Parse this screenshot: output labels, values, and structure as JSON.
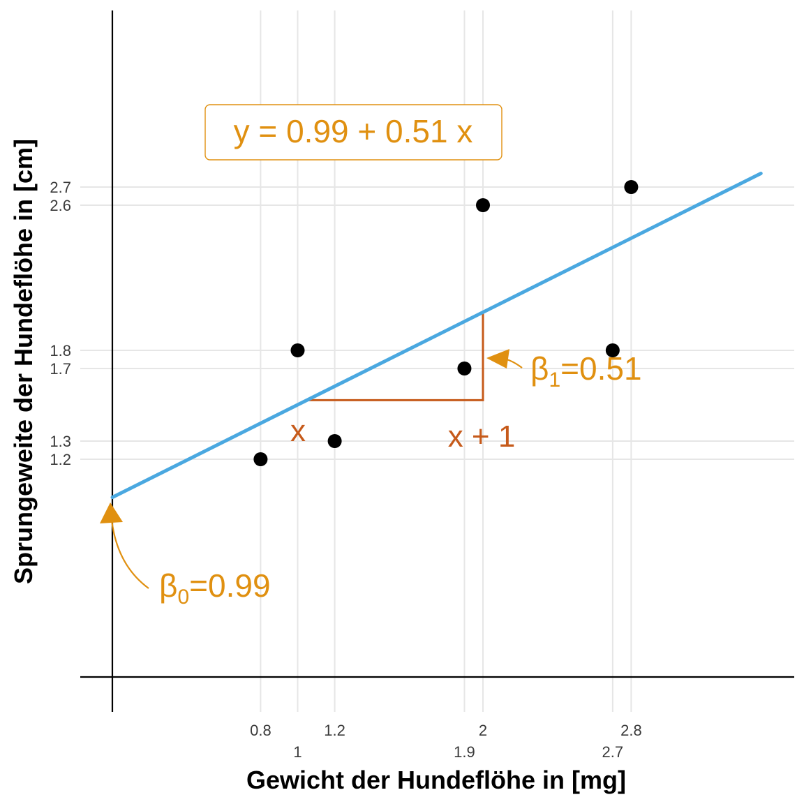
{
  "chart_data": {
    "type": "scatter",
    "xlabel": "Gewicht der Hundeflöhe in [mg]",
    "ylabel": "Sprungeweite der Hundeflöhe in [cm]",
    "xlim": [
      0,
      3.5
    ],
    "ylim": [
      0,
      3.6
    ],
    "grid": true,
    "points": [
      {
        "x": 0.8,
        "y": 1.2
      },
      {
        "x": 1.0,
        "y": 1.8
      },
      {
        "x": 1.2,
        "y": 1.3
      },
      {
        "x": 1.9,
        "y": 1.7
      },
      {
        "x": 2.0,
        "y": 2.6
      },
      {
        "x": 2.7,
        "y": 1.8
      },
      {
        "x": 2.8,
        "y": 2.7
      }
    ],
    "x_ticks_top": [
      "0.8",
      "1.2",
      "2",
      "2.8"
    ],
    "x_ticks_bottom": [
      "1",
      "1.9",
      "2.7"
    ],
    "x_tick_values_top": [
      0.8,
      1.2,
      2.0,
      2.8
    ],
    "x_tick_values_bottom": [
      1.0,
      1.9,
      2.7
    ],
    "y_ticks": [
      "1.2",
      "1.3",
      "1.7",
      "1.8",
      "2.6",
      "2.7"
    ],
    "y_tick_values": [
      1.2,
      1.3,
      1.7,
      1.8,
      2.6,
      2.7
    ],
    "regression": {
      "intercept": 0.99,
      "slope": 0.51,
      "x_range": [
        0,
        3.5
      ],
      "color": "#4aa8e0"
    },
    "slope_triangle": {
      "x_start": 1.05,
      "x_end": 2.0,
      "color": "#c65a1a",
      "label_x": "x",
      "label_x1": "x + 1"
    },
    "annotations": {
      "equation": "y = 0.99 + 0.51 x",
      "beta0_symbol": "β",
      "beta0_sub": "0",
      "beta0_value": "=0.99",
      "beta1_symbol": "β",
      "beta1_sub": "1",
      "beta1_value": "=0.51",
      "color": "#e09010"
    }
  }
}
